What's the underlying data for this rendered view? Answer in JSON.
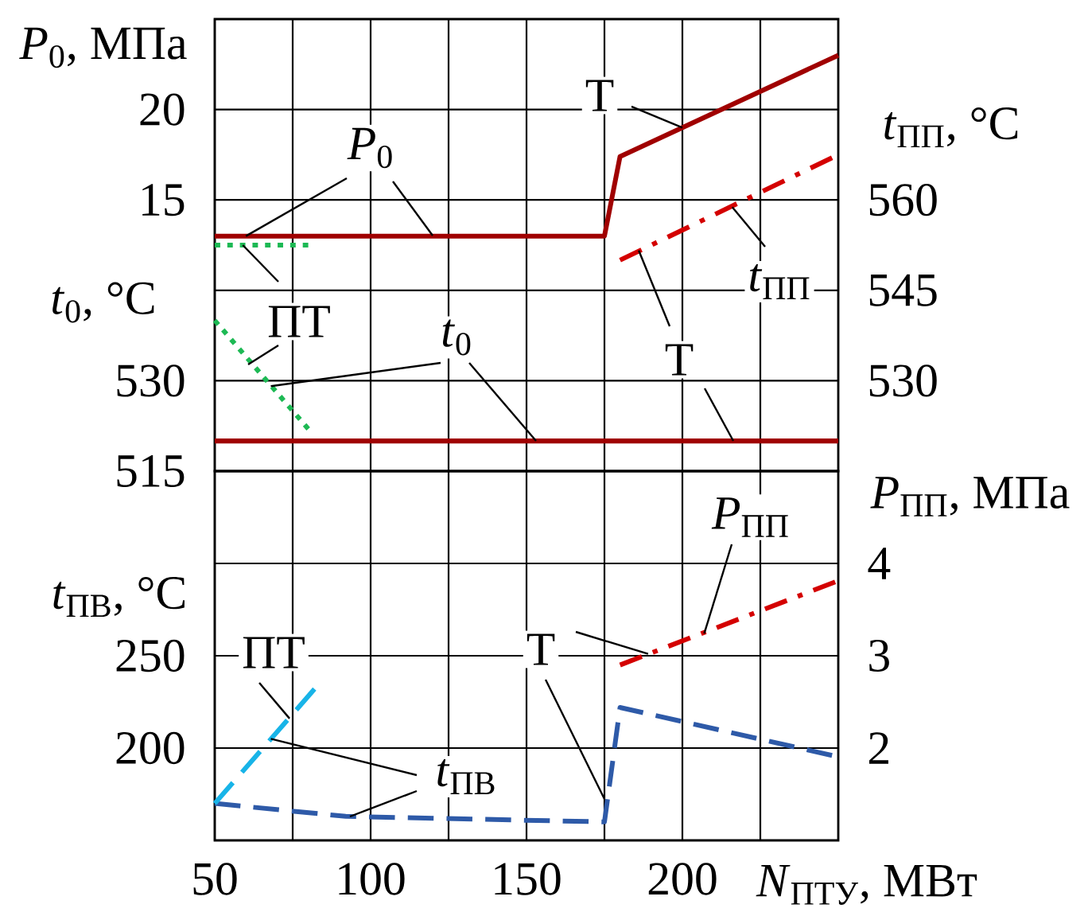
{
  "chart_data": [
    {
      "type": "line",
      "ylabel": "*P*$_{0}$, МПа",
      "y2label": "*t*$_{ПП}$, °C",
      "y3label": "*t*$_{0}$, °C",
      "xlim": [
        50,
        250
      ],
      "xticks": [
        50,
        {
          "value": 75,
          "label": null
        },
        100,
        {
          "value": 125,
          "label": null
        },
        150,
        {
          "value": 175,
          "label": null
        },
        200,
        {
          "value": 225,
          "label": null
        }
      ],
      "ylim": [
        0,
        25
      ],
      "yticks": [
        {
          "value": 5,
          "label": null
        },
        {
          "value": 10,
          "label": null
        },
        15,
        20
      ],
      "y2lim": [
        515,
        590
      ],
      "y2ticks": [
        530,
        545,
        560
      ],
      "y3lim": [
        515,
        590
      ],
      "y3ticks": [
        515,
        530
      ],
      "grid": true,
      "tick_labels": "y",
      "series": [
        {
          "axis": "y",
          "color": "#a00000",
          "line_style": "solid",
          "x": [
            50,
            175,
            180,
            250
          ],
          "values": [
            13,
            13,
            17.4,
            23
          ]
        },
        {
          "axis": "y",
          "color": "#1db954",
          "line_style": "dotted",
          "x": [
            50,
            80
          ],
          "values": [
            12.5,
            12.5
          ]
        },
        {
          "axis": "y3",
          "color": "#a00000",
          "line_style": "solid",
          "x": [
            50,
            250
          ],
          "values": [
            520,
            520
          ]
        },
        {
          "axis": "y3",
          "color": "#1db954",
          "line_style": "dotted",
          "x": [
            50,
            80
          ],
          "values": [
            540,
            522
          ]
        },
        {
          "axis": "y2",
          "color": "#d40000",
          "line_style": "dashdot",
          "x": [
            180,
            248
          ],
          "values": [
            550,
            567
          ]
        }
      ],
      "annotations": [
        {
          "text": "*P*$_{0}$",
          "x": 60,
          "y": 13
        },
        {
          "text": "ПТ",
          "x": 59,
          "y": 12.5
        },
        {
          "text": "*t*$_{0}$",
          "x": 68,
          "y": 4.7
        },
        {
          "text": "Т",
          "x": 200,
          "y": 19
        },
        {
          "text": "*t*$_{ПП}$",
          "x": 216,
          "y": 14.6
        },
        {
          "text": "Т",
          "x": 186,
          "y": 12.2
        }
      ]
    },
    {
      "type": "line",
      "xlabel": "*N*$_{ПТУ}$, МВт",
      "ylabel": "*t*$_{ПВ}$, °C",
      "y2label": "*P*$_{ПП}$, МПа",
      "xlim": [
        50,
        250
      ],
      "xticks": [
        50,
        {
          "value": 75,
          "label": null
        },
        100,
        {
          "value": 125,
          "label": null
        },
        150,
        {
          "value": 175,
          "label": null
        },
        200,
        {
          "value": 225,
          "label": null
        }
      ],
      "ylim": [
        150,
        350
      ],
      "yticks": [
        200,
        250,
        {
          "value": 300,
          "label": null
        }
      ],
      "y2lim": [
        1,
        5
      ],
      "y2ticks": [
        2,
        3,
        4
      ],
      "grid": true,
      "series": [
        {
          "axis": "y2",
          "color": "#d40000",
          "line_style": "dashdot",
          "x": [
            180,
            249
          ],
          "values": [
            2.9,
            3.8
          ]
        },
        {
          "axis": "y",
          "color": "#2e5aa8",
          "line_style": "dashed",
          "x": [
            50,
            92,
            175,
            180,
            248
          ],
          "values": [
            170,
            163,
            160,
            222,
            196
          ]
        },
        {
          "axis": "y",
          "color": "#18b4e8",
          "line_style": "dashed",
          "x": [
            50,
            82
          ],
          "values": [
            170,
            232
          ]
        }
      ],
      "annotations": [
        {
          "text": "*P*$_{ПП}$",
          "x": 207,
          "y": 262
        },
        {
          "text": "Т",
          "x": 189,
          "y": 251
        },
        {
          "text": "ПТ",
          "x": 74,
          "y": 216
        },
        {
          "text": "*t*$_{ПВ}$",
          "x": 68,
          "y": 205
        }
      ]
    }
  ]
}
